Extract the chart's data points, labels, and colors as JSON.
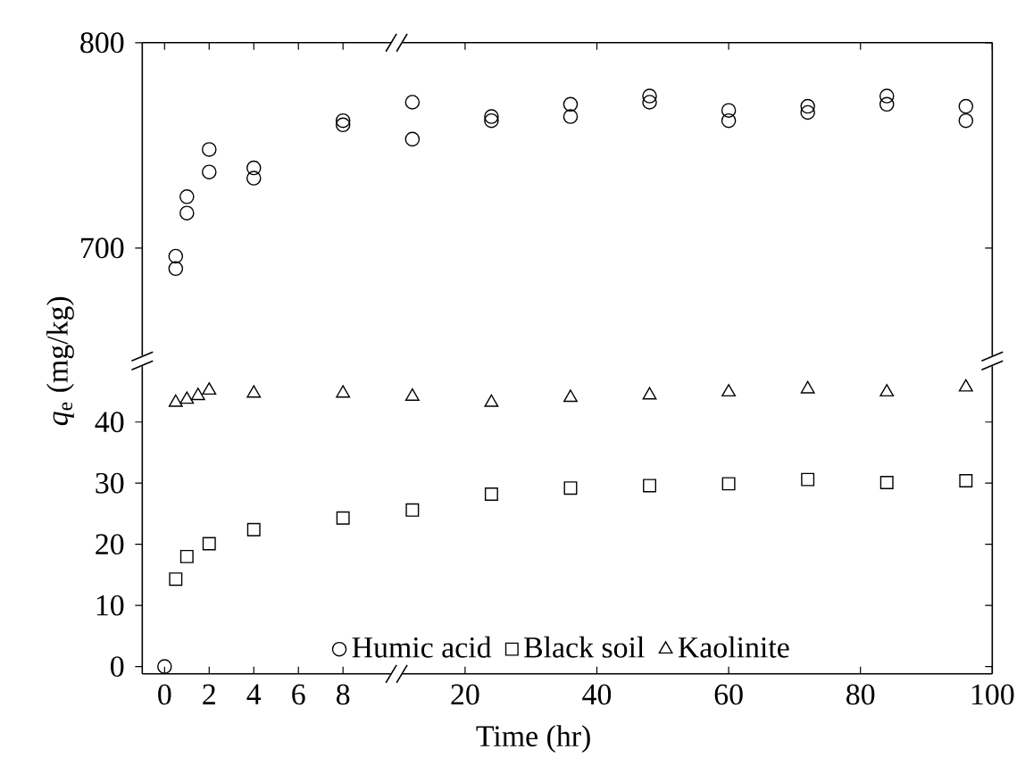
{
  "chart_data": [
    {
      "type": "scatter",
      "xlim": [
        -1,
        10.4
      ],
      "ylim": [
        645,
        800
      ],
      "xticks": [
        0,
        2,
        4,
        6,
        8
      ],
      "yticks": [
        700,
        800
      ],
      "tick_labels": "y",
      "grid": false,
      "series": [
        {
          "color": "#000000",
          "marker": "circle",
          "x": [
            0.5,
            0.5,
            1,
            1,
            2,
            2,
            4,
            4,
            8,
            8
          ],
          "values": [
            696,
            690,
            725,
            717,
            748,
            737,
            739,
            734,
            762,
            760
          ]
        }
      ]
    },
    {
      "type": "scatter",
      "xlim": [
        9.6,
        100
      ],
      "ylim": [
        645,
        800
      ],
      "xticks": [
        20,
        40,
        60,
        80,
        100
      ],
      "yticks": [
        700,
        800
      ],
      "tick_labels": false,
      "grid": false,
      "series": [
        {
          "color": "#000000",
          "marker": "circle",
          "x": [
            12,
            12,
            24,
            24,
            36,
            36,
            48,
            48,
            60,
            60,
            72,
            72,
            84,
            84,
            96,
            96
          ],
          "values": [
            771,
            753,
            764,
            762,
            770,
            764,
            774,
            771,
            767,
            762,
            769,
            766,
            774,
            770,
            769,
            762
          ]
        }
      ]
    },
    {
      "type": "scatter",
      "xlim": [
        -1,
        10.4
      ],
      "ylim": [
        -1.2,
        50
      ],
      "xticks": [
        0,
        2,
        4,
        6,
        8
      ],
      "yticks": [
        0,
        10,
        20,
        30,
        40
      ],
      "ylabel": "*q*$_{e}$ (mg/kg)",
      "grid": false,
      "legend": "bottom",
      "series": [
        {
          "name": "Humic acid",
          "color": "#000000",
          "marker": "circle",
          "x": [
            0
          ],
          "values": [
            0
          ]
        },
        {
          "name": "Black soil",
          "color": "#000000",
          "marker": "square",
          "x": [
            0.5,
            1,
            2,
            4,
            8
          ],
          "values": [
            14.3,
            18,
            20.1,
            22.4,
            24.3
          ]
        },
        {
          "name": "Kaolinite",
          "color": "#000000",
          "marker": "triangle",
          "x": [
            0.5,
            1,
            1.5,
            2,
            4,
            8
          ],
          "values": [
            43.2,
            43.7,
            44.3,
            45.2,
            44.7,
            44.7
          ]
        }
      ]
    },
    {
      "type": "scatter",
      "xlim": [
        9.6,
        100
      ],
      "ylim": [
        -1.2,
        50
      ],
      "xticks": [
        20,
        40,
        60,
        80,
        100
      ],
      "yticks": [
        0,
        10,
        20,
        30,
        40
      ],
      "xlabel": "Time (hr)",
      "tick_labels": "x",
      "grid": false,
      "series": [
        {
          "color": "#000000",
          "marker": "square",
          "x": [
            12,
            24,
            36,
            48,
            60,
            72,
            84,
            96
          ],
          "values": [
            25.6,
            28.2,
            29.2,
            29.6,
            29.9,
            30.6,
            30.1,
            30.4
          ]
        },
        {
          "color": "#000000",
          "marker": "triangle",
          "x": [
            12,
            24,
            36,
            48,
            60,
            72,
            84,
            96
          ],
          "values": [
            44.2,
            43.2,
            44,
            44.4,
            44.9,
            45.4,
            44.9,
            45.7
          ]
        }
      ]
    }
  ]
}
